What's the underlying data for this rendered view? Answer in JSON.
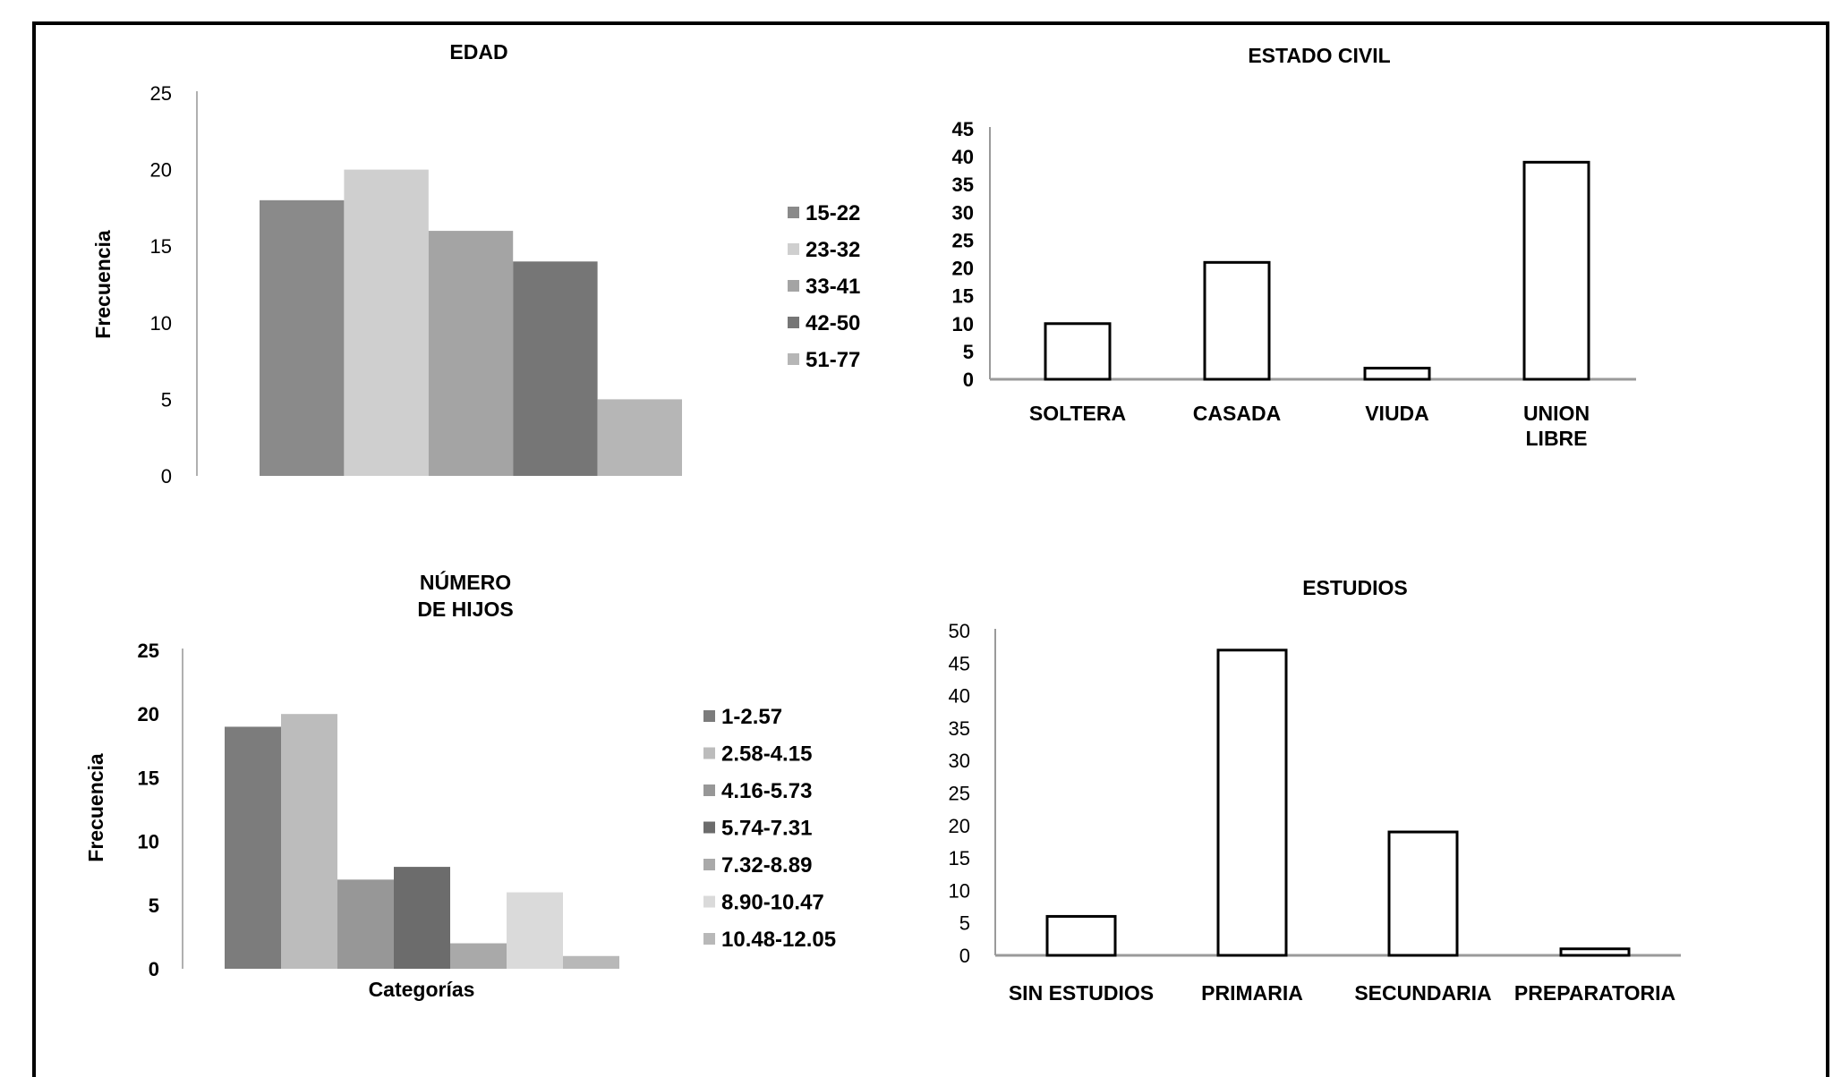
{
  "chart_data": [
    {
      "id": "edad",
      "type": "bar",
      "title": "EDAD",
      "ylabel": "Frecuencia",
      "xlabel": "",
      "ylim": [
        0,
        25
      ],
      "yticks": [
        "0",
        "5",
        "10",
        "15",
        "20",
        "25"
      ],
      "legend_position": "right",
      "series": [
        {
          "name": "15-22",
          "value": 18,
          "color": "#8a8a8a"
        },
        {
          "name": "23-32",
          "value": 20,
          "color": "#cfcfcf"
        },
        {
          "name": "33-41",
          "value": 16,
          "color": "#a4a4a4"
        },
        {
          "name": "42-50",
          "value": 14,
          "color": "#767676"
        },
        {
          "name": "51-77",
          "value": 5,
          "color": "#b6b6b6"
        }
      ]
    },
    {
      "id": "estado-civil",
      "type": "bar",
      "title": "ESTADO CIVIL",
      "ylim": [
        0,
        45
      ],
      "yticks": [
        "0",
        "5",
        "10",
        "15",
        "20",
        "25",
        "30",
        "35",
        "40",
        "45"
      ],
      "categories": [
        [
          "SOLTERA"
        ],
        [
          "CASADA"
        ],
        [
          "VIUDA"
        ],
        [
          "UNION",
          "LIBRE"
        ]
      ],
      "values": [
        10,
        21,
        2,
        39
      ]
    },
    {
      "id": "numero-de-hijos",
      "type": "bar",
      "title": [
        "NÚMERO",
        "DE HIJOS"
      ],
      "ylabel": "Frecuencia",
      "xlabel": "Categorías",
      "ylim": [
        0,
        25
      ],
      "yticks": [
        "0",
        "5",
        "10",
        "15",
        "20",
        "25"
      ],
      "legend_position": "right",
      "series": [
        {
          "name": "1-2.57",
          "value": 19,
          "color": "#7c7c7c"
        },
        {
          "name": "2.58-4.15",
          "value": 20,
          "color": "#bcbcbc"
        },
        {
          "name": "4.16-5.73",
          "value": 7,
          "color": "#979797"
        },
        {
          "name": "5.74-7.31",
          "value": 8,
          "color": "#6c6c6c"
        },
        {
          "name": "7.32-8.89",
          "value": 2,
          "color": "#a9a9a9"
        },
        {
          "name": "8.90-10.47",
          "value": 6,
          "color": "#dadada"
        },
        {
          "name": "10.48-12.05",
          "value": 1,
          "color": "#b8b8b8"
        }
      ]
    },
    {
      "id": "estudios",
      "type": "bar",
      "title": "ESTUDIOS",
      "ylim": [
        0,
        50
      ],
      "yticks": [
        "0",
        "5",
        "10",
        "15",
        "20",
        "25",
        "30",
        "35",
        "40",
        "45",
        "50"
      ],
      "categories": [
        [
          "SIN ESTUDIOS"
        ],
        [
          "PRIMARIA"
        ],
        [
          "SECUNDARIA"
        ],
        [
          "PREPARATORIA"
        ]
      ],
      "values": [
        6,
        47,
        19,
        1
      ]
    }
  ]
}
